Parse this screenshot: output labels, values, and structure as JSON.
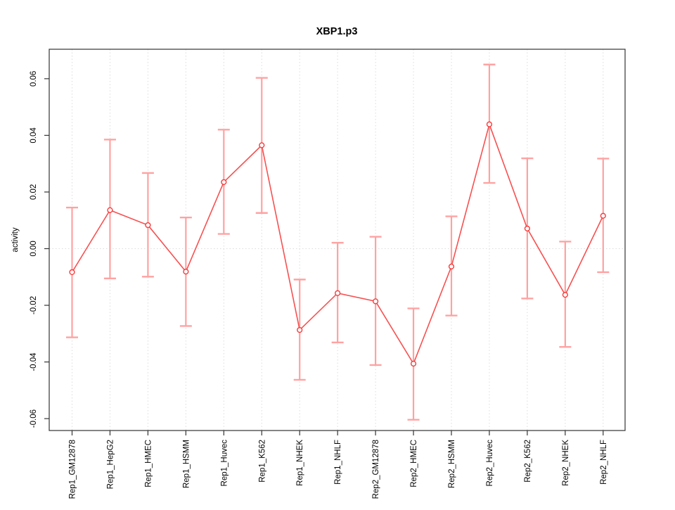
{
  "chart_data": {
    "type": "line",
    "title": "XBP1.p3",
    "xlabel": "",
    "ylabel": "activity",
    "categories": [
      "Rep1_GM12878",
      "Rep1_HepG2",
      "Rep1_HMEC",
      "Rep1_HSMM",
      "Rep1_Huvec",
      "Rep1_K562",
      "Rep1_NHEK",
      "Rep1_NHLF",
      "Rep2_GM12878",
      "Rep2_HMEC",
      "Rep2_HSMM",
      "Rep2_Huvec",
      "Rep2_K562",
      "Rep2_NHEK",
      "Rep2_NHLF"
    ],
    "series": [
      {
        "name": "activity",
        "values": [
          -0.0083,
          0.0136,
          0.0083,
          -0.0081,
          0.0235,
          0.0365,
          -0.0287,
          -0.0157,
          -0.0186,
          -0.0406,
          -0.0063,
          0.0439,
          0.0071,
          -0.0163,
          0.0116
        ],
        "error_high": [
          0.0145,
          0.0385,
          0.0267,
          0.011,
          0.042,
          0.0603,
          -0.0109,
          0.0021,
          0.0042,
          -0.0211,
          0.0114,
          0.065,
          0.0319,
          0.0025,
          0.0318
        ],
        "error_low": [
          -0.0313,
          -0.0105,
          -0.0099,
          -0.0273,
          0.0052,
          0.0126,
          -0.0463,
          -0.0331,
          -0.0411,
          -0.0604,
          -0.0236,
          0.0232,
          -0.0176,
          -0.0347,
          -0.0083
        ]
      }
    ],
    "ylim": [
      -0.0642,
      0.0704
    ],
    "yticks": [
      -0.06,
      -0.04,
      -0.02,
      0.0,
      0.02,
      0.04,
      0.06
    ],
    "grid": "vertical dotted line at each category; horizontal dotted line at y=0",
    "legend": "none",
    "colors": {
      "error_bar": "#ffa2a2",
      "line": "#f85050",
      "point_stroke": "#f53c3c",
      "point_fill": "#ffffff",
      "grid": "#dcdcdc",
      "zero_line": "#dcdcdc",
      "box": "#333333",
      "text": "#000000"
    }
  }
}
